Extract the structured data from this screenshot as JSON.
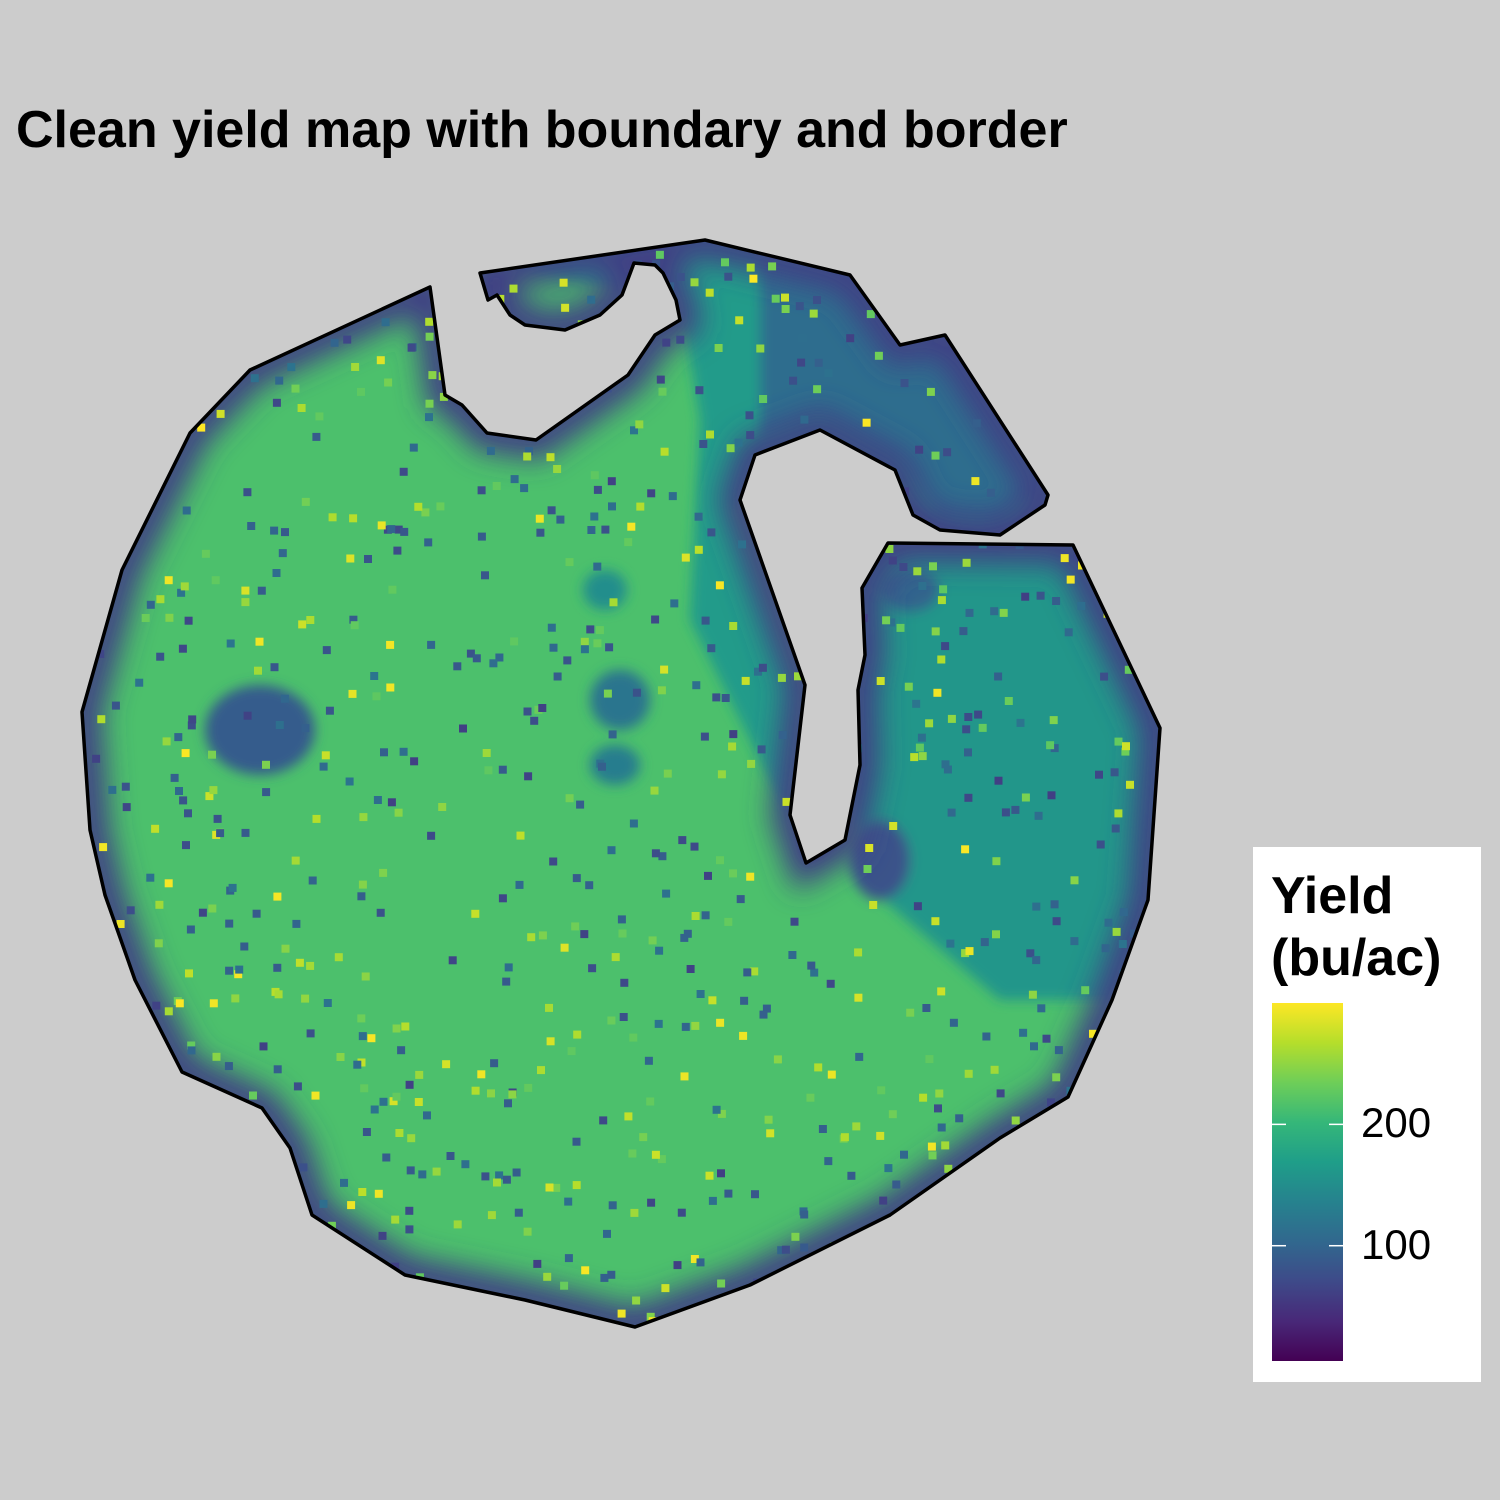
{
  "title": "Clean yield map with boundary and border",
  "legend": {
    "title_line1": "Yield",
    "title_line2": "(bu/ac)",
    "min": 5,
    "max": 300,
    "ticks": [
      {
        "value": 200,
        "label": "200"
      },
      {
        "value": 100,
        "label": "100"
      }
    ],
    "palette": [
      "#440154",
      "#482878",
      "#3e4a89",
      "#31688e",
      "#26828e",
      "#1f9e89",
      "#35b779",
      "#6ece58",
      "#b5de2b",
      "#fde725"
    ]
  },
  "map": {
    "background": "#cccccc",
    "boundary_color": "#000000",
    "typical_yield": 215,
    "edge_yield": 60
  }
}
